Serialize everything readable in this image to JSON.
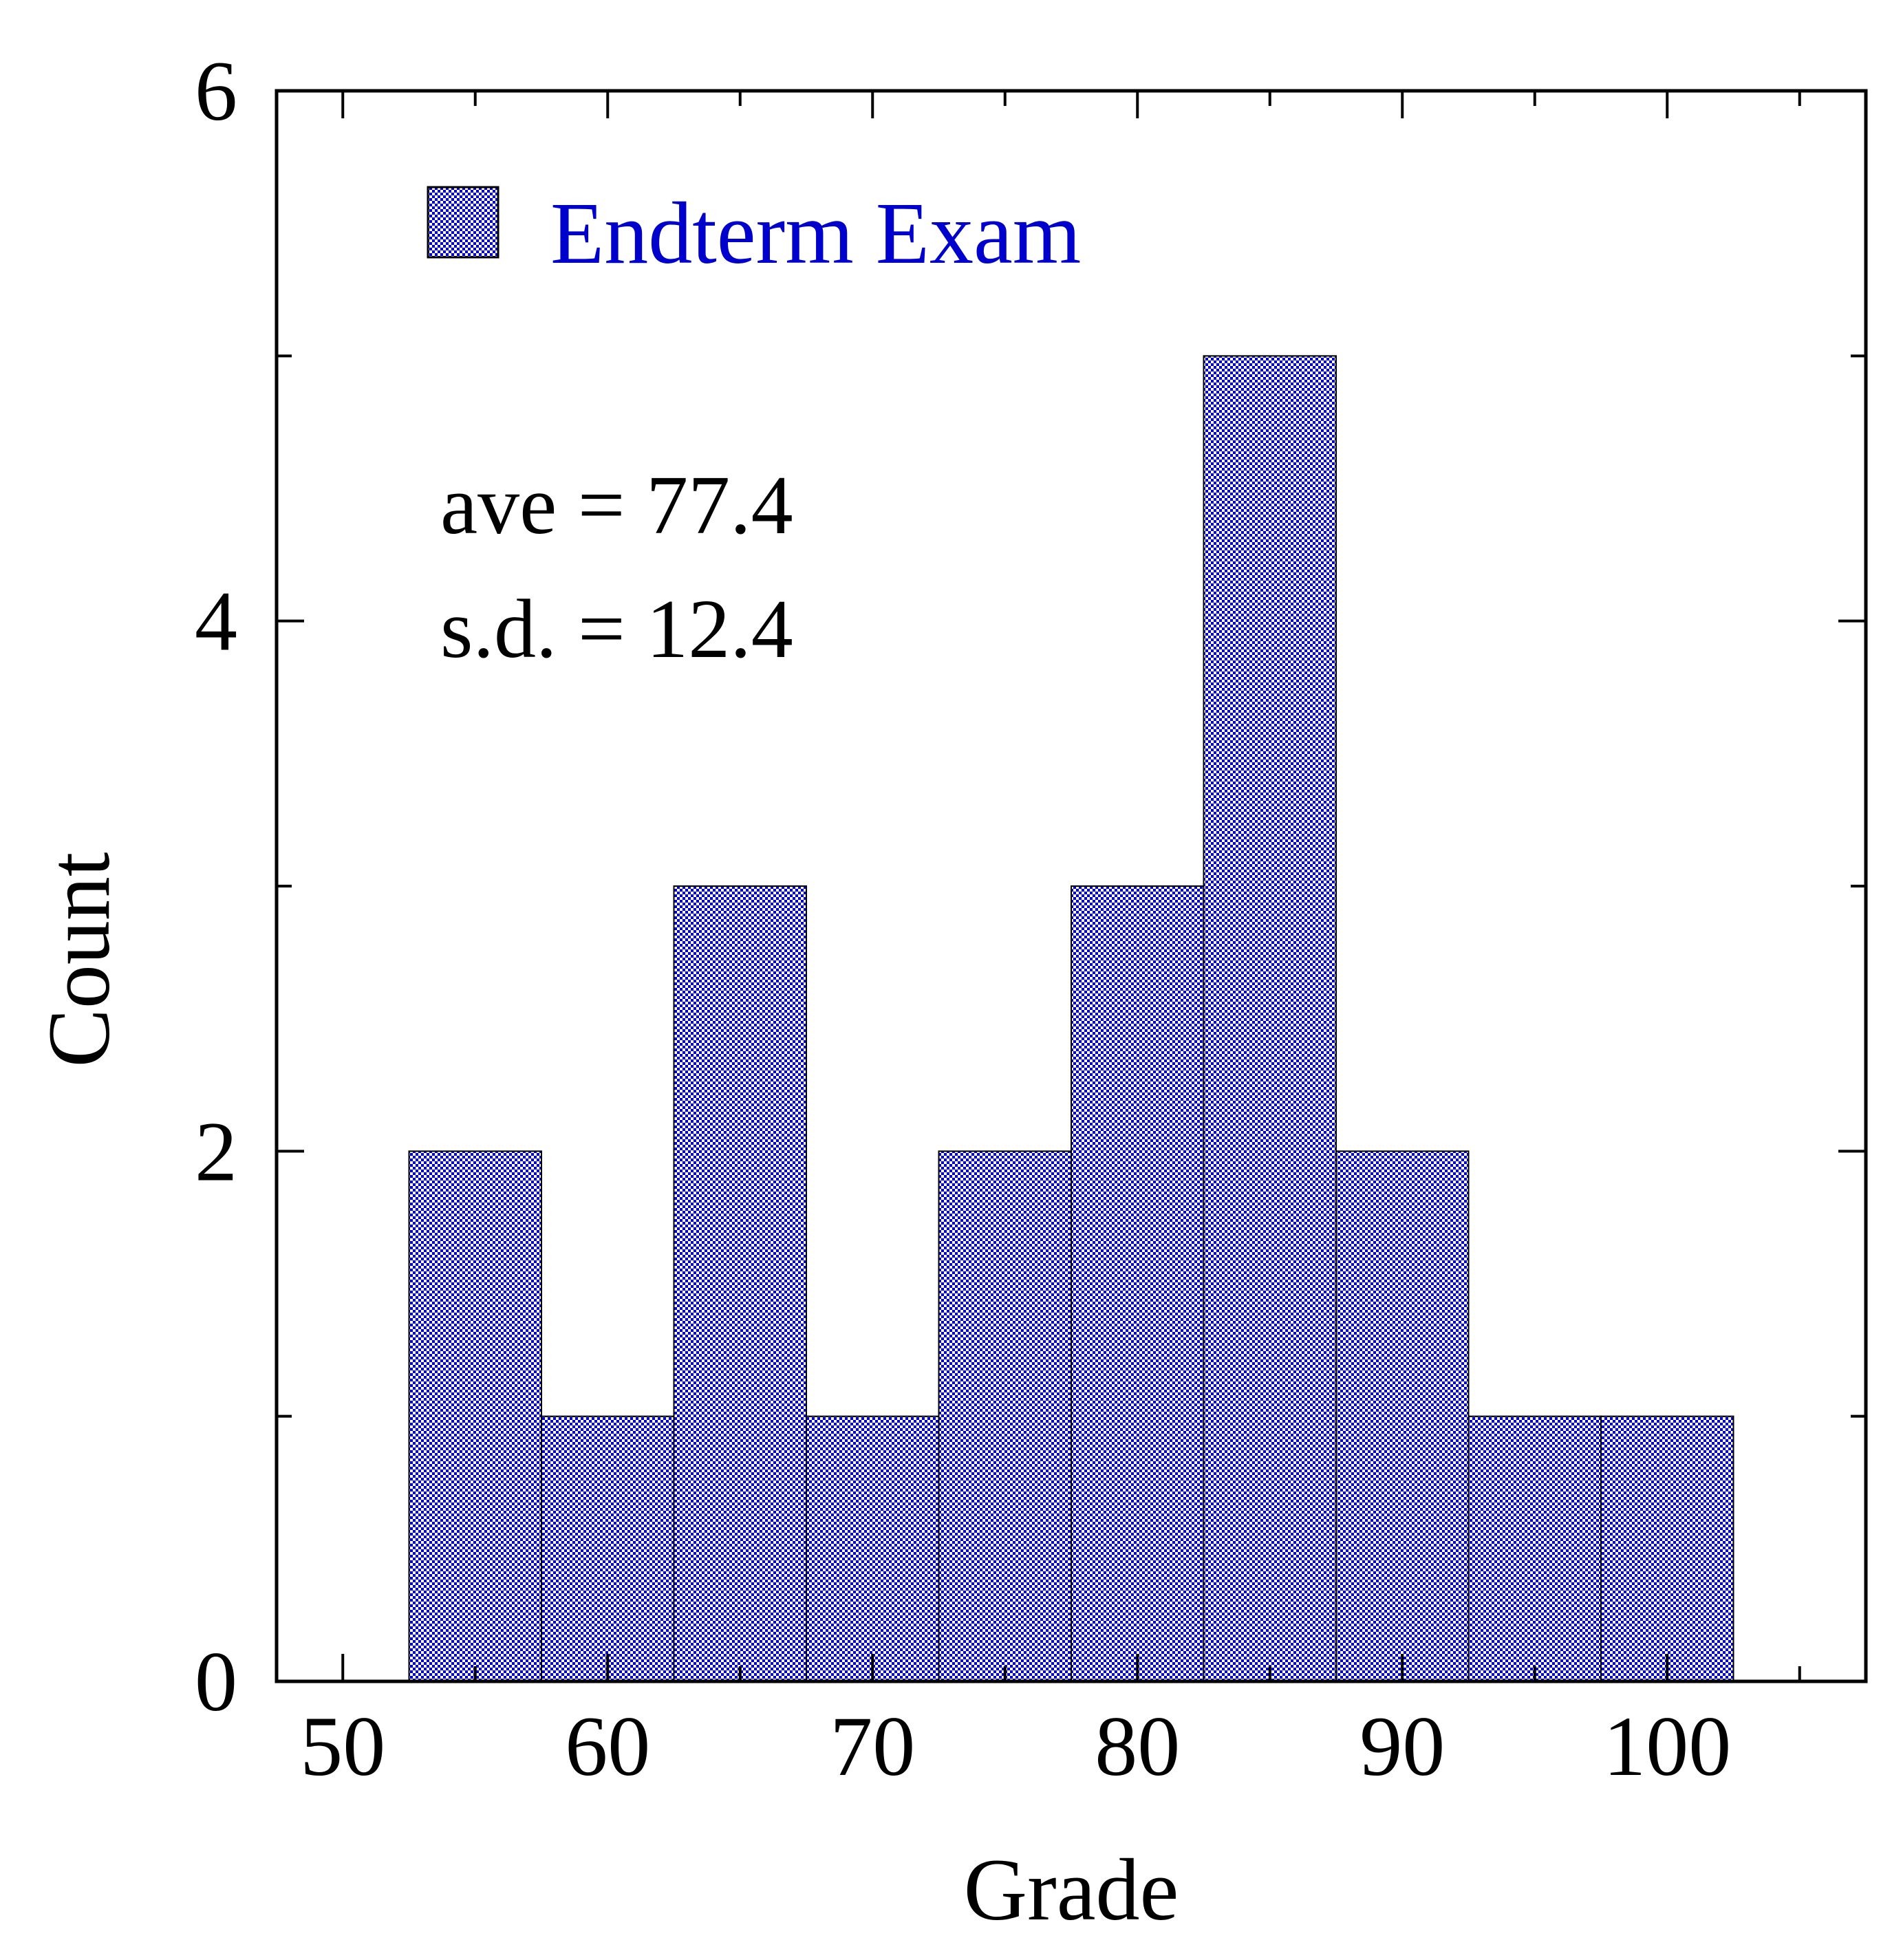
{
  "chart_data": {
    "type": "bar",
    "histogram": true,
    "bin_width": 5,
    "bins": [
      {
        "x_start": 52.5,
        "x_end": 57.5,
        "count": 2
      },
      {
        "x_start": 57.5,
        "x_end": 62.5,
        "count": 1
      },
      {
        "x_start": 62.5,
        "x_end": 67.5,
        "count": 3
      },
      {
        "x_start": 67.5,
        "x_end": 72.5,
        "count": 1
      },
      {
        "x_start": 72.5,
        "x_end": 77.5,
        "count": 2
      },
      {
        "x_start": 77.5,
        "x_end": 82.5,
        "count": 3
      },
      {
        "x_start": 82.5,
        "x_end": 87.5,
        "count": 5
      },
      {
        "x_start": 87.5,
        "x_end": 92.5,
        "count": 2
      },
      {
        "x_start": 92.5,
        "x_end": 97.5,
        "count": 1
      },
      {
        "x_start": 97.5,
        "x_end": 102.5,
        "count": 1
      }
    ],
    "series": [
      {
        "name": "Endterm Exam",
        "color": "#0000cc"
      }
    ],
    "xlabel": "Grade",
    "ylabel": "Count",
    "xlim": [
      47.5,
      107.5
    ],
    "ylim": [
      0,
      6
    ],
    "x_ticks": [
      50,
      60,
      70,
      80,
      90,
      100
    ],
    "x_minor_step": 5,
    "y_ticks": [
      0,
      2,
      4,
      6
    ],
    "y_minor_step": 1,
    "grid": false,
    "legend_position": "top-left",
    "annotations": [
      "ave = 77.4",
      "s.d. = 12.4"
    ]
  }
}
